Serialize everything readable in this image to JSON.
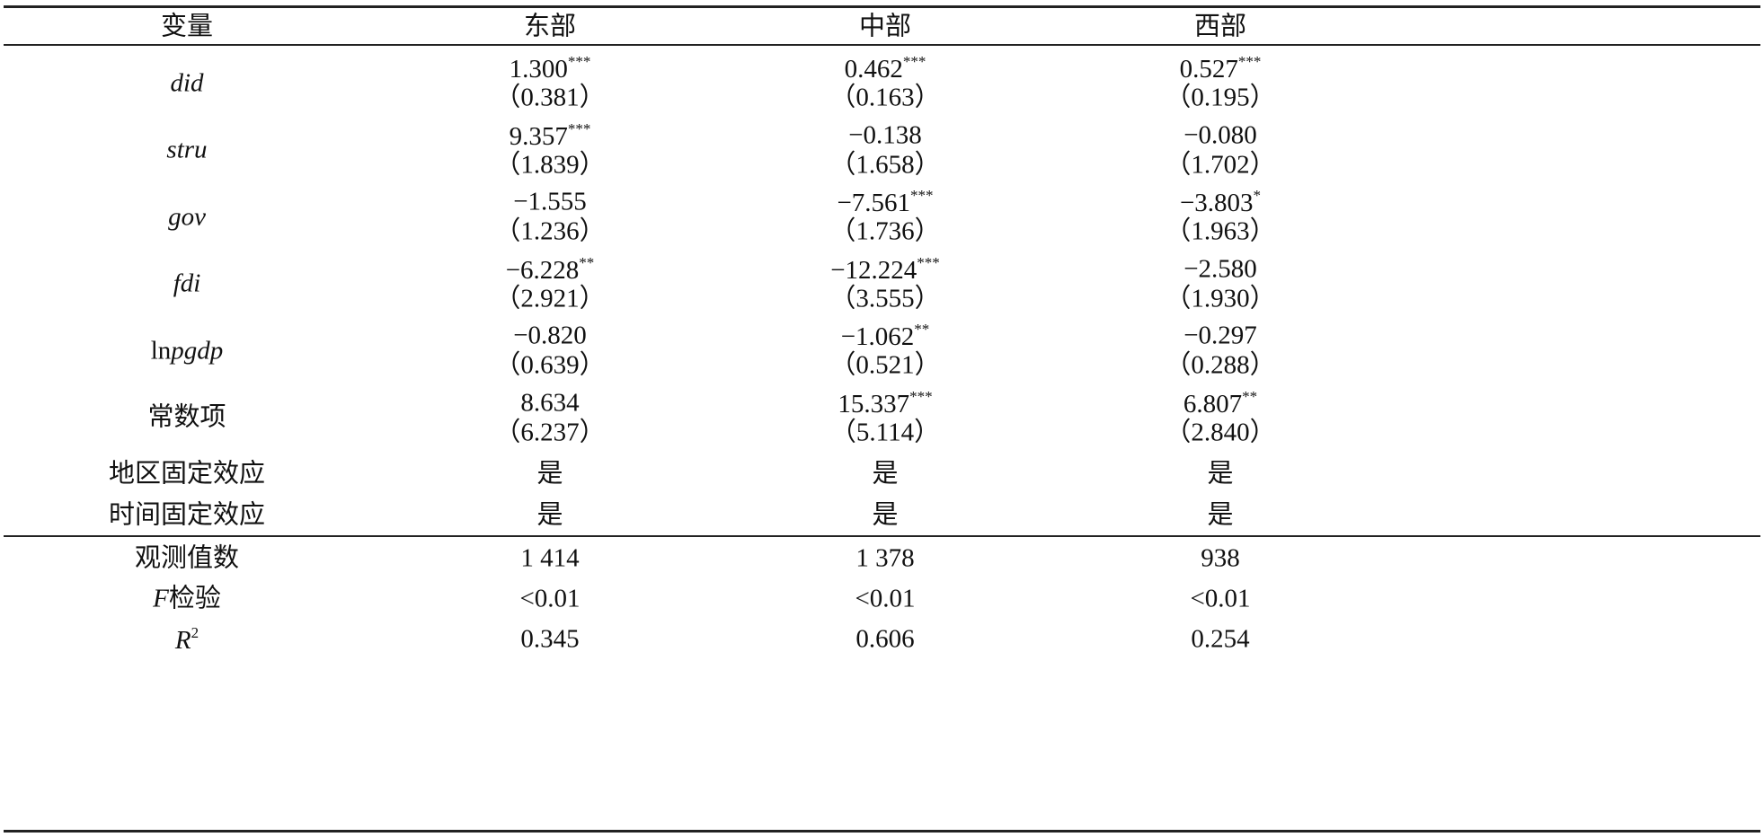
{
  "header": [
    "变量",
    "东部",
    "中部",
    "西部"
  ],
  "rows": [
    {
      "name": [
        {
          "text": "did",
          "italic": true
        }
      ],
      "cells": [
        {
          "coef": "1.300",
          "stars": "***",
          "se": "（0.381）"
        },
        {
          "coef": "0.462",
          "stars": "***",
          "se": "（0.163）"
        },
        {
          "coef": "0.527",
          "stars": "***",
          "se": "（0.195）"
        }
      ]
    },
    {
      "name": [
        {
          "text": "stru",
          "italic": true
        }
      ],
      "cells": [
        {
          "coef": "9.357",
          "stars": "***",
          "se": "（1.839）"
        },
        {
          "coef": "−0.138",
          "se": "（1.658）"
        },
        {
          "coef": "−0.080",
          "se": "（1.702）"
        }
      ]
    },
    {
      "name": [
        {
          "text": "gov",
          "italic": true
        }
      ],
      "cells": [
        {
          "coef": "−1.555",
          "se": "（1.236）"
        },
        {
          "coef": "−7.561",
          "stars": "***",
          "se": "（1.736）"
        },
        {
          "coef": "−3.803",
          "stars": "*",
          "se": "（1.963）"
        }
      ]
    },
    {
      "name": [
        {
          "text": "fdi",
          "italic": true
        }
      ],
      "cells": [
        {
          "coef": "−6.228",
          "stars": "**",
          "se": "（2.921）"
        },
        {
          "coef": "−12.224",
          "stars": "***",
          "se": "（3.555）"
        },
        {
          "coef": "−2.580",
          "se": "（1.930）"
        }
      ]
    },
    {
      "name": [
        {
          "text": "ln"
        },
        {
          "text": "pgdp",
          "italic": true
        }
      ],
      "cells": [
        {
          "coef": "−0.820",
          "se": "（0.639）"
        },
        {
          "coef": "−1.062",
          "stars": "**",
          "se": "（0.521）"
        },
        {
          "coef": "−0.297",
          "se": "（0.288）"
        }
      ]
    },
    {
      "name": [
        {
          "text": "常数项"
        }
      ],
      "cells": [
        {
          "coef": "8.634",
          "se": "（6.237）"
        },
        {
          "coef": "15.337",
          "stars": "***",
          "se": "（5.114）"
        },
        {
          "coef": "6.807",
          "stars": "**",
          "se": "（2.840）"
        }
      ]
    }
  ],
  "fixed_rows": [
    {
      "name": [
        {
          "text": "地区固定效应"
        }
      ],
      "cells": [
        "是",
        "是",
        "是"
      ]
    },
    {
      "name": [
        {
          "text": "时间固定效应"
        }
      ],
      "cells": [
        "是",
        "是",
        "是"
      ]
    }
  ],
  "stats_rows": [
    {
      "name": [
        {
          "text": "观测值数"
        }
      ],
      "cells": [
        "1 414",
        "1 378",
        "938"
      ]
    },
    {
      "name": [
        {
          "text": "F",
          "italic": true
        },
        {
          "text": "检验"
        }
      ],
      "cells": [
        "<0.01",
        "<0.01",
        "<0.01"
      ]
    },
    {
      "name": [
        {
          "text": "R",
          "italic": true
        },
        {
          "text": "2",
          "sup": true
        }
      ],
      "cells": [
        "0.345",
        "0.606",
        "0.254"
      ]
    }
  ]
}
